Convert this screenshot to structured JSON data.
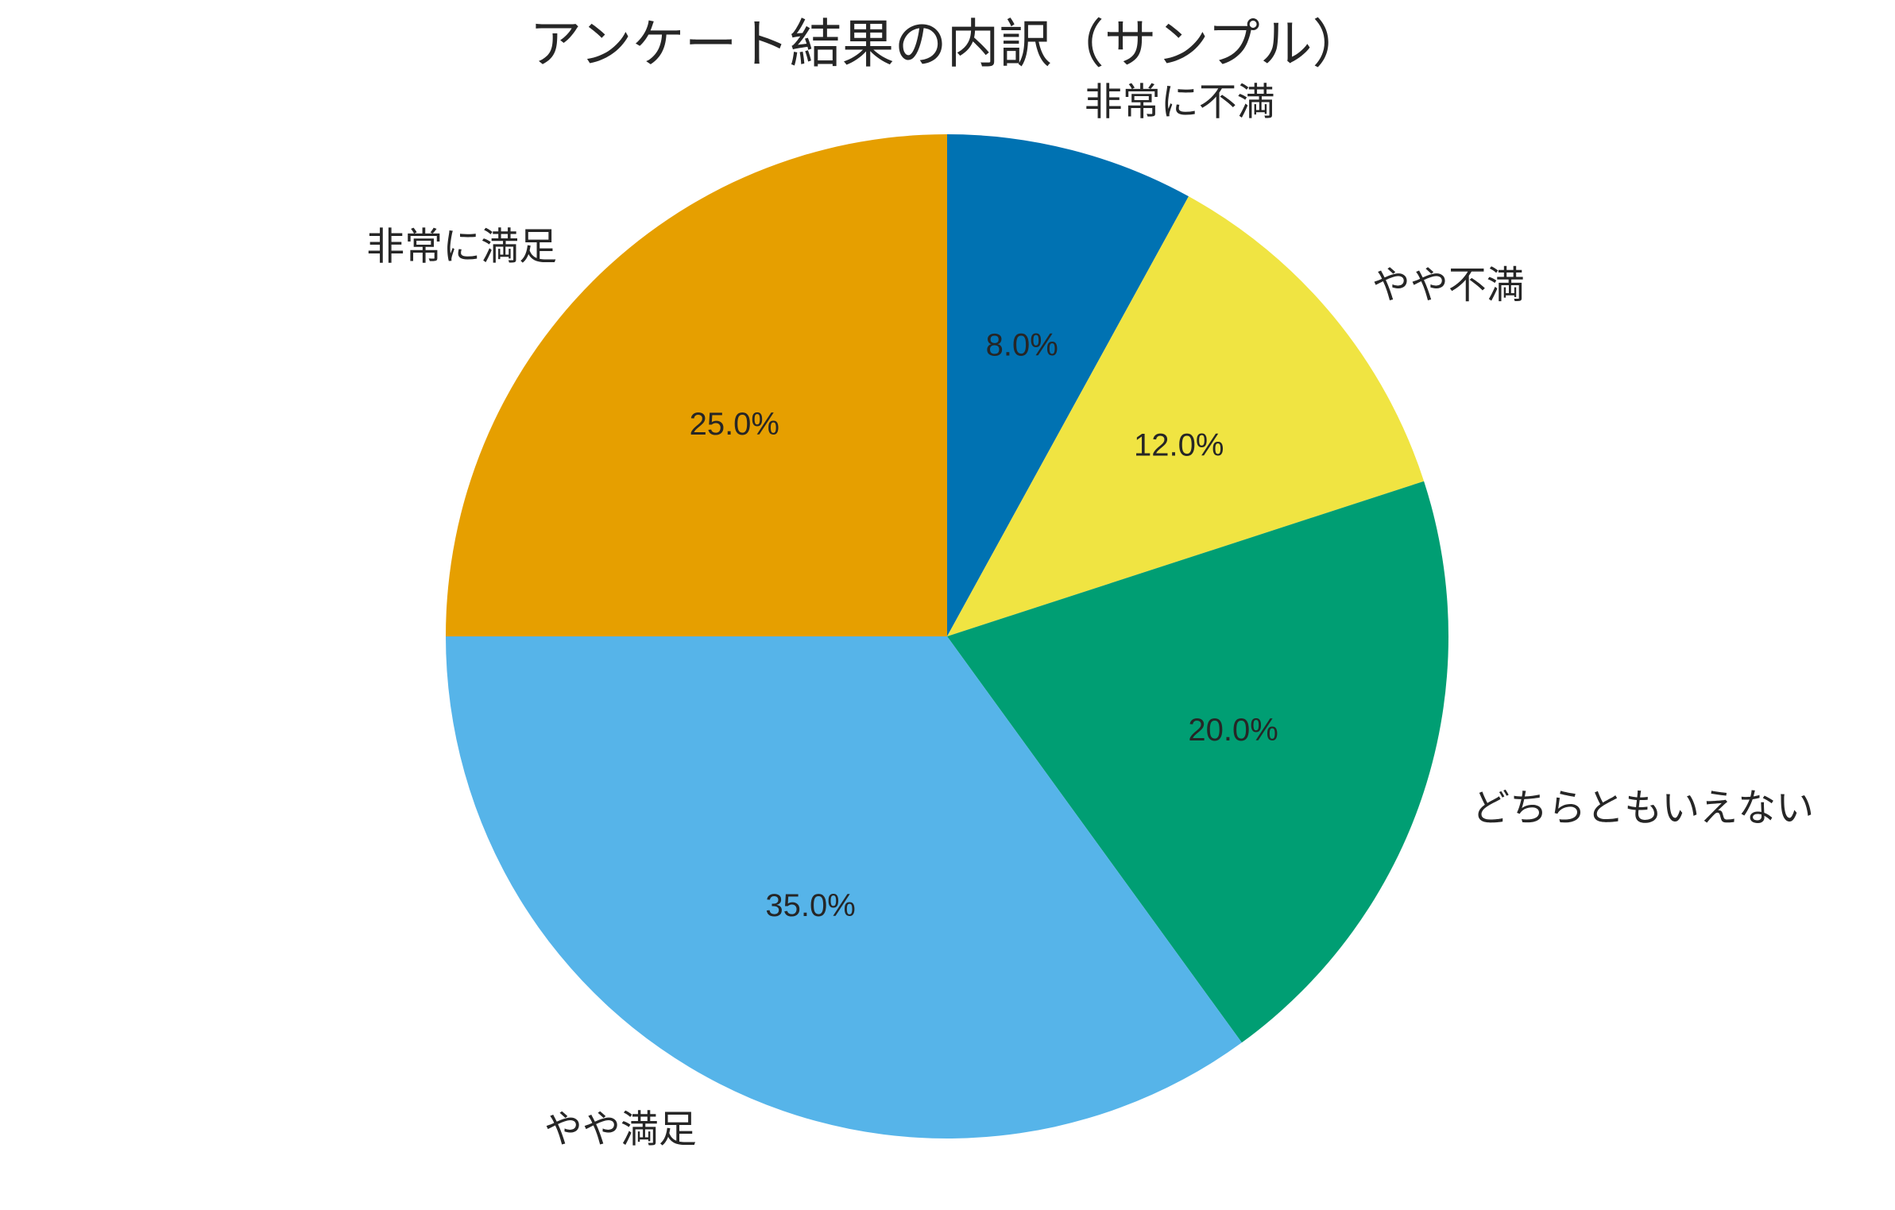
{
  "chart_data": {
    "type": "pie",
    "title": "アンケート結果の内訳（サンプル）",
    "start_angle_deg": 90,
    "direction": "clockwise",
    "slices": [
      {
        "label": "非常に不満",
        "value": 8.0,
        "pct_text": "8.0%",
        "color": "#0072B2"
      },
      {
        "label": "やや不満",
        "value": 12.0,
        "pct_text": "12.0%",
        "color": "#F0E442"
      },
      {
        "label": "どちらともいえない",
        "value": 20.0,
        "pct_text": "20.0%",
        "color": "#009E73"
      },
      {
        "label": "やや満足",
        "value": 35.0,
        "pct_text": "35.0%",
        "color": "#56B4E9"
      },
      {
        "label": "非常に満足",
        "value": 25.0,
        "pct_text": "25.0%",
        "color": "#E69F00"
      }
    ]
  }
}
